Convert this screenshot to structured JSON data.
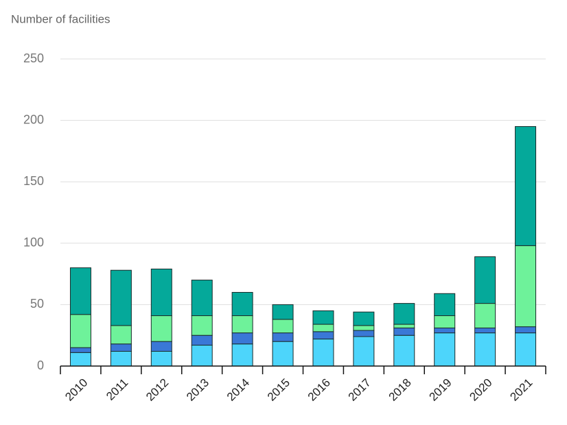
{
  "chart_data": {
    "type": "stacked_bar",
    "title": "Number of facilities",
    "categories": [
      "2010",
      "2011",
      "2012",
      "2013",
      "2014",
      "2015",
      "2016",
      "2017",
      "2018",
      "2019",
      "2020",
      "2021"
    ],
    "series": [
      {
        "color": "#4dd5fb",
        "values": [
          11,
          12,
          12,
          17,
          18,
          20,
          22,
          24,
          25,
          27,
          27,
          27
        ]
      },
      {
        "color": "#3a78d6",
        "values": [
          4,
          6,
          8,
          8,
          9,
          7,
          6,
          5,
          6,
          4,
          4,
          5
        ]
      },
      {
        "color": "#6ef29a",
        "values": [
          27,
          15,
          21,
          16,
          14,
          11,
          6,
          4,
          3,
          10,
          20,
          66
        ]
      },
      {
        "color": "#05a99a",
        "values": [
          38,
          45,
          38,
          29,
          19,
          12,
          11,
          11,
          17,
          18,
          38,
          97
        ]
      }
    ],
    "ylim": [
      0,
      250
    ],
    "yticks": [
      0,
      50,
      100,
      150,
      200,
      250
    ],
    "grid": true
  }
}
